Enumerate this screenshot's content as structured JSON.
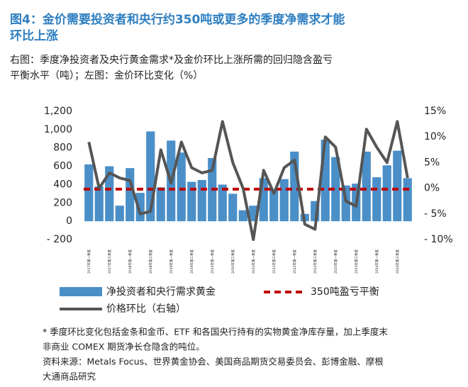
{
  "chart_data": {
    "type": "bar_line",
    "title": [
      "图4：金价需要投资者和央行约350吨或更多的季度净需求才能",
      "环比上涨"
    ],
    "subtitle": [
      "右图：季度净投资者及央行黄金需求*及金价环比上涨所需的回归隐含盈亏",
      "平衡水平（吨）；左图：金价环比变化（%）"
    ],
    "categories": [
      "2017年第一季度",
      null,
      "2017年第三季度",
      null,
      "2018年第一季度",
      null,
      "2018年第三季度",
      null,
      "2019年第一季度",
      null,
      "2019年第三季度",
      null,
      "2020年第一季度",
      null,
      "2020年第三季度",
      null,
      "2021年第一季度",
      null,
      "2021年第三季度",
      null,
      "2022年第一季度",
      null,
      "2022年第三季度",
      null,
      "2023年第一季度",
      null,
      "2023年第三季度",
      null,
      "2024年第一季度",
      null,
      "2024年第三季度",
      null
    ],
    "series": [
      {
        "name": "净投资者和央行需求黄金",
        "color": "#4a8fc8",
        "values": [
          620,
          380,
          600,
          170,
          580,
          310,
          980,
          370,
          880,
          750,
          430,
          450,
          690,
          400,
          300,
          120,
          170,
          470,
          340,
          460,
          760,
          80,
          220,
          890,
          700,
          390,
          410,
          760,
          480,
          610,
          770,
          470
        ]
      },
      {
        "name": "价格环比（右轴）",
        "color": "#555555",
        "axis": "y2",
        "values": [
          9,
          0,
          3,
          2,
          1.5,
          -5,
          -4.5,
          7.5,
          1,
          9,
          4,
          3,
          3.5,
          13,
          5,
          0,
          -10,
          3.5,
          -1,
          4,
          5.5,
          -7,
          -8,
          10,
          8,
          -2.5,
          -3.5,
          11.5,
          8,
          5,
          13,
          2
        ]
      }
    ],
    "reference_line": {
      "name": "350吨盈亏平衡",
      "value": 350,
      "color": "#c00000"
    },
    "ylim": [
      -200,
      1200
    ],
    "yticks": [
      {
        "value": -200,
        "label": "- 200"
      },
      0,
      200,
      400,
      600,
      800,
      {
        "value": 1000,
        "label": "1,000"
      },
      {
        "value": 1200,
        "label": "1,200"
      }
    ],
    "y2lim": [
      -10,
      15
    ],
    "y2ticks": [
      {
        "value": -10,
        "label": "- 10%"
      },
      {
        "value": -5,
        "label": "- 5%"
      },
      {
        "value": 0,
        "label": "0%"
      },
      {
        "value": 5,
        "label": "5%"
      },
      {
        "value": 10,
        "label": "10%"
      },
      {
        "value": 15,
        "label": "15%"
      }
    ],
    "notes": [
      "* 季度环比变化包括金条和金币、ETF 和各国央行持有的实物黄金净库存量，加上季度末",
      "非商业 COMEX 期货净长仓隐含的吨位。",
      "资料来源：Metals Focus、世界黄金协会、美国商品期货交易委员会、彭博金融、摩根",
      "大通商品研究"
    ]
  }
}
